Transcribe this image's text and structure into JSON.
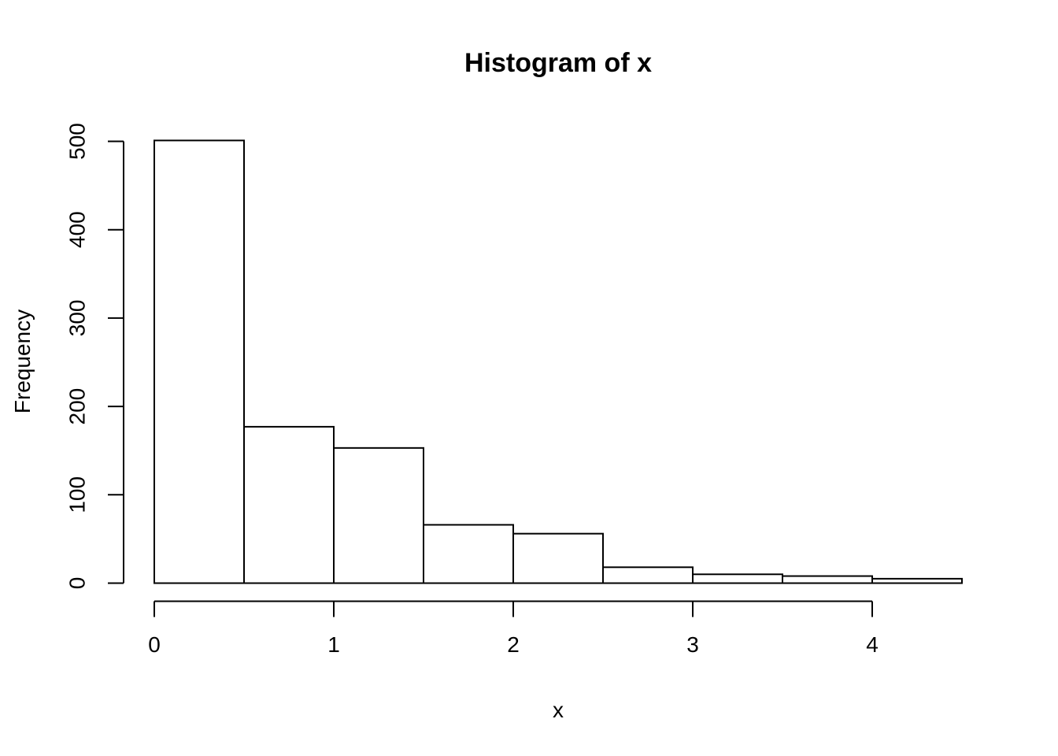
{
  "window": {
    "background": "#ffffff"
  },
  "chart_data": {
    "type": "bar",
    "subtype": "histogram",
    "title": "Histogram of x",
    "xlabel": "x",
    "ylabel": "Frequency",
    "bin_edges": [
      0,
      0.5,
      1,
      1.5,
      2,
      2.5,
      3,
      3.5,
      4,
      4.5
    ],
    "counts": [
      501,
      177,
      153,
      66,
      56,
      18,
      10,
      8,
      5
    ],
    "x_ticks": [
      0,
      1,
      2,
      3,
      4
    ],
    "y_ticks": [
      0,
      100,
      200,
      300,
      400,
      500
    ],
    "xlim": [
      0,
      4.5
    ],
    "ylim": [
      0,
      500
    ],
    "bar_fill": "#ffffff",
    "bar_border": "#000000",
    "axis_color": "#000000",
    "text_color": "#000000",
    "grid": false,
    "legend": "none"
  }
}
